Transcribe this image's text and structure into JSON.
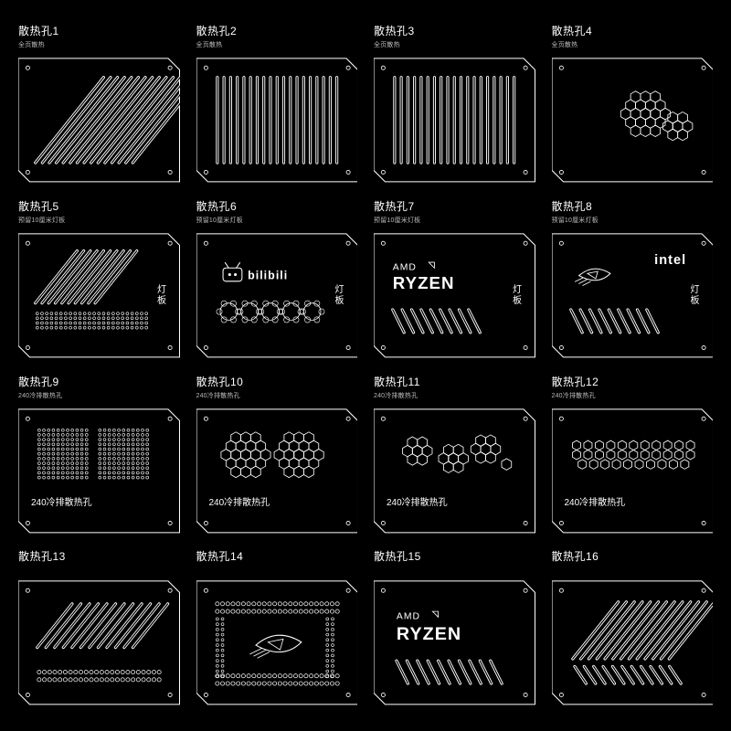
{
  "colors": {
    "bg": "#000000",
    "stroke": "#ffffff",
    "text": "#ffffff",
    "subtext": "#bababa"
  },
  "panel": {
    "width": 170,
    "height": 130,
    "stroke_width": 1,
    "corner_cut": 12,
    "screw_radius": 2,
    "screw_inset": 10
  },
  "items": [
    {
      "id": 1,
      "title": "散热孔1",
      "subtitle": "全页散热",
      "pattern": "diag-full"
    },
    {
      "id": 2,
      "title": "散热孔2",
      "subtitle": "全页散热",
      "pattern": "vert-full"
    },
    {
      "id": 3,
      "title": "散热孔3",
      "subtitle": "全页散热",
      "pattern": "vert-full"
    },
    {
      "id": 4,
      "title": "散热孔4",
      "subtitle": "全页散热",
      "pattern": "hex-cluster-right"
    },
    {
      "id": 5,
      "title": "散热孔5",
      "subtitle": "预留10厘米灯板",
      "pattern": "diag-top-left-dots-bottom",
      "side_label": "灯板"
    },
    {
      "id": 6,
      "title": "散热孔6",
      "subtitle": "预留10厘米灯板",
      "pattern": "bilibili-circles",
      "side_label": "灯板"
    },
    {
      "id": 7,
      "title": "散热孔7",
      "subtitle": "预留10厘米灯板",
      "pattern": "ryzen-diag",
      "side_label": "灯板"
    },
    {
      "id": 8,
      "title": "散热孔8",
      "subtitle": "预留10厘米灯板",
      "pattern": "intel-rog-diag",
      "side_label": "灯板"
    },
    {
      "id": 9,
      "title": "散热孔9",
      "subtitle": "240冷排散热孔",
      "pattern": "two-dot-squares",
      "inside_label": "240冷排散热孔"
    },
    {
      "id": 10,
      "title": "散热孔10",
      "subtitle": "240冷排散热孔",
      "pattern": "hex-two-cluster",
      "inside_label": "240冷排散热孔"
    },
    {
      "id": 11,
      "title": "散热孔11",
      "subtitle": "240冷排散热孔",
      "pattern": "hex-spread",
      "inside_label": "240冷排散热孔"
    },
    {
      "id": 12,
      "title": "散热孔12",
      "subtitle": "240冷排散热孔",
      "pattern": "hex-row",
      "inside_label": "240冷排散热孔"
    },
    {
      "id": 13,
      "title": "散热孔13",
      "subtitle": "",
      "pattern": "diag-group-dots-row"
    },
    {
      "id": 14,
      "title": "散热孔14",
      "subtitle": "",
      "pattern": "rog-dots-border"
    },
    {
      "id": 15,
      "title": "散热孔15",
      "subtitle": "",
      "pattern": "ryzen-below-diag"
    },
    {
      "id": 16,
      "title": "散热孔16",
      "subtitle": "",
      "pattern": "diag-group-large"
    }
  ],
  "logos": {
    "amd": "AMD",
    "ryzen": "RYZEN",
    "intel": "intel",
    "bilibili": "bilibili"
  },
  "pattern_styles": {
    "slot_stroke": 1,
    "slot_round": 2,
    "diag_angle_deg": 40,
    "dot_radius": 1.4,
    "hex_radius": 6
  }
}
